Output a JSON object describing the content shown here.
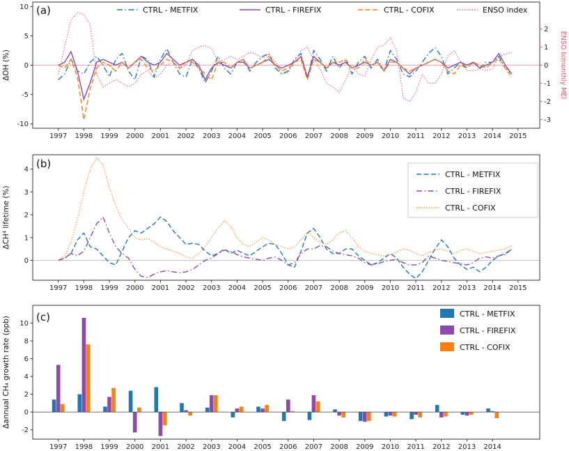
{
  "chart_data": [
    {
      "id": "a",
      "type": "line",
      "tag": "(a)",
      "ylabel": "ΔOH (%)",
      "ylim": [
        -10.75,
        10.75
      ],
      "yticks": [
        -10,
        -5,
        0,
        5,
        10
      ],
      "xticks": [
        1997,
        1998,
        1999,
        2000,
        2001,
        2002,
        2003,
        2004,
        2005,
        2006,
        2007,
        2008,
        2009,
        2010,
        2011,
        2012,
        2013,
        2014,
        2015
      ],
      "x_start": 1997.0,
      "x_step": 0.25,
      "zero_line_color": "#f5a3b0",
      "legend_position": "top-row",
      "right_axis": {
        "label": "ENSO bimonthly MEI",
        "color": "#e65368",
        "ticks": [
          2,
          1,
          0,
          -1,
          -2,
          -3
        ]
      },
      "series": [
        {
          "name": "CTRL - METFIX",
          "color": "#1f77b4",
          "style": "dashdot",
          "axis": "left",
          "values": [
            -2.5,
            -1.5,
            1.0,
            -1.0,
            -1.5,
            0.5,
            1.5,
            0.0,
            -2.0,
            1.0,
            2.0,
            -1.0,
            -2.5,
            1.5,
            1.0,
            -2.0,
            1.0,
            2.8,
            0.5,
            -1.5,
            -2.0,
            1.0,
            -0.5,
            -3.0,
            -1.0,
            1.5,
            -0.5,
            -1.5,
            0.5,
            1.0,
            -1.0,
            0.5,
            1.5,
            2.0,
            -0.5,
            -1.5,
            -1.0,
            1.0,
            2.0,
            -2.5,
            2.5,
            1.0,
            -1.0,
            1.5,
            -0.5,
            1.0,
            -1.5,
            0.5,
            1.5,
            -0.5,
            1.0,
            -1.0,
            2.5,
            1.0,
            -1.5,
            -2.0,
            -1.0,
            0.5,
            2.0,
            3.0,
            1.5,
            -1.5,
            -0.5,
            0.5,
            -0.5,
            0.5,
            -0.5,
            0.5,
            0.5,
            1.5,
            -0.5,
            -1.5
          ]
        },
        {
          "name": "CTRL - FIREFIX",
          "color": "#8d48ab",
          "style": "solid",
          "axis": "left",
          "values": [
            0.0,
            0.5,
            2.3,
            -1.0,
            -5.8,
            -3.0,
            0.5,
            1.0,
            0.5,
            0.0,
            0.5,
            -0.5,
            0.5,
            1.5,
            0.5,
            0.0,
            0.5,
            2.0,
            1.0,
            0.0,
            0.5,
            1.0,
            0.0,
            -2.5,
            -0.5,
            0.5,
            0.0,
            -0.5,
            0.5,
            0.5,
            -0.5,
            0.0,
            0.5,
            1.0,
            0.0,
            -0.5,
            0.0,
            0.5,
            1.5,
            -2.0,
            1.5,
            0.5,
            -0.5,
            0.5,
            0.0,
            0.5,
            -0.5,
            0.0,
            0.5,
            0.0,
            0.5,
            -1.0,
            1.0,
            0.5,
            -0.5,
            -1.5,
            -0.5,
            0.0,
            0.5,
            1.0,
            0.5,
            -0.5,
            0.0,
            0.5,
            0.0,
            0.5,
            -0.5,
            0.0,
            0.5,
            2.0,
            0.0,
            -1.5
          ]
        },
        {
          "name": "CTRL - COFIX",
          "color": "#ff7f0e",
          "style": "dashed",
          "axis": "left",
          "values": [
            0.0,
            -0.5,
            1.0,
            -2.0,
            -9.3,
            -4.0,
            -0.5,
            0.5,
            0.0,
            -1.0,
            0.5,
            -0.5,
            0.5,
            1.0,
            -0.5,
            -1.0,
            0.0,
            1.0,
            0.5,
            -0.5,
            0.5,
            0.5,
            -0.5,
            -1.5,
            -2.5,
            0.5,
            0.5,
            -0.5,
            0.5,
            1.0,
            -0.5,
            0.0,
            0.5,
            1.5,
            0.0,
            -1.0,
            -0.5,
            0.5,
            1.0,
            -2.5,
            1.0,
            0.5,
            -0.5,
            0.5,
            0.5,
            1.0,
            -0.5,
            -0.5,
            1.0,
            0.0,
            0.5,
            -1.0,
            0.5,
            0.5,
            -0.5,
            -1.0,
            -0.5,
            0.0,
            0.5,
            1.0,
            0.5,
            -1.0,
            -1.5,
            0.0,
            -0.5,
            0.5,
            0.0,
            -0.5,
            0.5,
            1.0,
            -0.5,
            -2.0
          ]
        },
        {
          "name": "ENSO index",
          "color": "#e65368",
          "style": "dotted",
          "axis": "right",
          "values": [
            -0.5,
            1.0,
            2.5,
            2.9,
            2.8,
            2.2,
            -0.5,
            -1.2,
            -1.0,
            -0.8,
            -1.0,
            -1.2,
            -1.0,
            -0.5,
            -0.3,
            -0.7,
            -0.5,
            0.0,
            0.2,
            -0.2,
            0.0,
            0.8,
            1.0,
            1.1,
            0.9,
            0.2,
            0.3,
            0.5,
            0.3,
            0.5,
            0.7,
            0.6,
            0.4,
            0.6,
            0.2,
            -0.5,
            -0.4,
            0.2,
            0.8,
            1.0,
            0.3,
            -0.2,
            -1.0,
            -1.2,
            -1.5,
            -0.8,
            0.0,
            -0.5,
            -0.6,
            0.3,
            1.0,
            1.1,
            1.5,
            0.8,
            -1.8,
            -2.0,
            -1.5,
            -0.5,
            -1.0,
            -1.0,
            -0.5,
            0.5,
            0.8,
            0.2,
            -0.3,
            -0.3,
            -0.2,
            -0.3,
            -0.2,
            0.5,
            0.6,
            0.7
          ]
        }
      ]
    },
    {
      "id": "b",
      "type": "line",
      "tag": "(b)",
      "ylabel": "ΔCH⁴ lifetime (%)",
      "ylim": [
        -0.87,
        4.63
      ],
      "yticks": [
        0,
        1,
        2,
        3,
        4
      ],
      "xticks": [
        1997,
        1998,
        1999,
        2000,
        2001,
        2002,
        2003,
        2004,
        2005,
        2006,
        2007,
        2008,
        2009,
        2010,
        2011,
        2012,
        2013,
        2014,
        2015
      ],
      "x_start": 1997.0,
      "x_step": 0.25,
      "zero_line_color": "#c4c4c4",
      "legend_position": "upper-right-box",
      "series": [
        {
          "name": "CTRL - METFIX",
          "color": "#1f77b4",
          "style": "dashed",
          "axis": "left",
          "values": [
            0.0,
            0.1,
            0.3,
            0.9,
            1.2,
            0.6,
            0.5,
            0.2,
            -0.1,
            -0.2,
            0.4,
            1.0,
            1.3,
            1.2,
            1.4,
            1.6,
            1.9,
            1.7,
            1.3,
            1.0,
            0.7,
            0.75,
            0.7,
            0.4,
            0.2,
            0.3,
            0.5,
            0.3,
            0.45,
            0.3,
            0.2,
            0.4,
            0.6,
            0.75,
            0.7,
            0.3,
            -0.2,
            -0.3,
            0.4,
            1.2,
            1.4,
            1.0,
            0.5,
            0.3,
            0.3,
            0.5,
            0.5,
            0.2,
            0.0,
            -0.2,
            -0.1,
            0.1,
            0.3,
            0.1,
            -0.3,
            -0.6,
            -0.8,
            -0.5,
            0.0,
            0.5,
            0.9,
            0.6,
            0.1,
            -0.2,
            -0.4,
            -0.3,
            -0.5,
            -0.3,
            0.0,
            0.2,
            0.3,
            0.5
          ]
        },
        {
          "name": "CTRL - FIREFIX",
          "color": "#8d48ab",
          "style": "dashdot",
          "axis": "left",
          "values": [
            0.0,
            0.1,
            0.3,
            0.2,
            0.4,
            1.0,
            1.6,
            1.9,
            1.2,
            0.6,
            0.3,
            0.1,
            -0.4,
            -0.7,
            -0.75,
            -0.6,
            -0.5,
            -0.45,
            -0.5,
            -0.55,
            -0.5,
            -0.4,
            -0.2,
            0.0,
            0.1,
            0.3,
            0.45,
            0.4,
            0.25,
            0.15,
            0.1,
            0.05,
            0.0,
            0.1,
            0.15,
            0.0,
            -0.2,
            -0.1,
            0.3,
            0.5,
            0.5,
            0.65,
            0.6,
            0.4,
            0.3,
            0.25,
            0.2,
            0.1,
            -0.1,
            -0.2,
            -0.15,
            -0.05,
            0.0,
            0.05,
            -0.1,
            -0.2,
            -0.2,
            -0.1,
            0.2,
            0.1,
            0.0,
            -0.05,
            -0.1,
            -0.15,
            -0.2,
            -0.1,
            0.1,
            0.15,
            0.1,
            0.2,
            0.25,
            0.5
          ]
        },
        {
          "name": "CTRL - COFIX",
          "color": "#ff7f0e",
          "style": "dotted",
          "axis": "left",
          "values": [
            0.0,
            0.2,
            0.8,
            1.8,
            3.0,
            4.0,
            4.5,
            4.2,
            3.2,
            2.4,
            1.8,
            1.4,
            1.0,
            0.9,
            0.95,
            0.8,
            0.6,
            0.5,
            0.4,
            0.3,
            0.15,
            0.1,
            0.3,
            0.6,
            1.0,
            1.4,
            1.75,
            1.5,
            1.0,
            0.7,
            0.6,
            0.8,
            1.0,
            0.9,
            0.7,
            0.6,
            0.5,
            0.6,
            0.9,
            1.2,
            1.0,
            0.8,
            0.7,
            0.9,
            1.2,
            1.3,
            1.0,
            0.6,
            0.4,
            0.3,
            0.25,
            0.2,
            0.25,
            0.35,
            0.5,
            0.45,
            0.3,
            0.2,
            0.35,
            0.45,
            0.5,
            0.4,
            0.3,
            0.45,
            0.5,
            0.4,
            0.3,
            0.35,
            0.4,
            0.45,
            0.5,
            0.65
          ]
        }
      ]
    },
    {
      "id": "c",
      "type": "bar",
      "tag": "(c)",
      "ylabel": "Δannual CH₄ growth rate (ppb)",
      "ylim": [
        -3.05,
        12.0
      ],
      "yticks": [
        -2,
        0,
        2,
        4,
        6,
        8,
        10
      ],
      "categories": [
        1997,
        1998,
        1999,
        2000,
        2001,
        2002,
        2003,
        2004,
        2005,
        2006,
        2007,
        2008,
        2009,
        2010,
        2011,
        2012,
        2013,
        2014
      ],
      "zero_line_color": "#3c3c3c",
      "legend_position": "upper-right",
      "series": [
        {
          "name": "CTRL - METFIX",
          "color": "#1f77b4",
          "values": [
            1.4,
            2.0,
            0.6,
            2.4,
            2.8,
            1.0,
            0.5,
            -0.6,
            0.6,
            -1.0,
            -0.9,
            0.3,
            -1.0,
            -0.5,
            -0.8,
            0.8,
            -0.3,
            0.4
          ]
        },
        {
          "name": "CTRL - FIREFIX",
          "color": "#8d48ab",
          "values": [
            5.3,
            10.6,
            1.7,
            -2.3,
            -2.7,
            0.2,
            1.9,
            0.4,
            0.4,
            1.4,
            1.9,
            -0.4,
            -1.1,
            -0.4,
            -0.3,
            -0.6,
            -0.4,
            0.1
          ]
        },
        {
          "name": "CTRL - COFIX",
          "color": "#ff7f0e",
          "values": [
            0.9,
            7.6,
            2.7,
            0.5,
            -1.5,
            -0.4,
            1.9,
            0.6,
            0.8,
            0.1,
            1.2,
            -0.6,
            -1.0,
            -0.5,
            -0.6,
            -0.5,
            -0.3,
            -0.7
          ]
        }
      ]
    }
  ]
}
